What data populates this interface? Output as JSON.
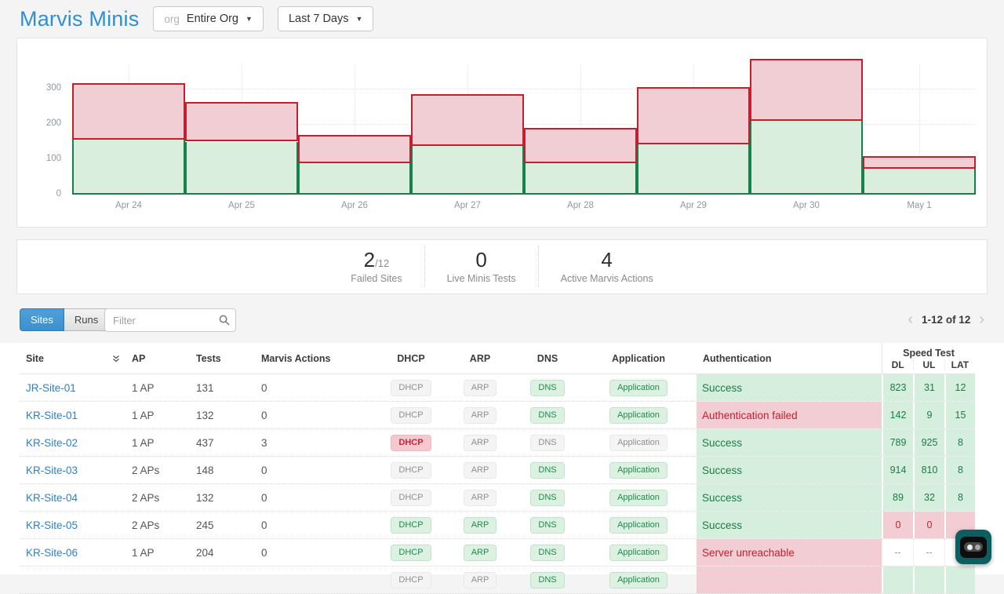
{
  "header": {
    "title": "Marvis Minis",
    "org_dropdown": {
      "prefix": "org",
      "value": "Entire Org"
    },
    "time_dropdown": {
      "value": "Last 7 Days"
    }
  },
  "chart_data": {
    "type": "area",
    "subtype": "stacked-step",
    "categories": [
      "Apr 24",
      "Apr 25",
      "Apr 26",
      "Apr 27",
      "Apr 28",
      "Apr 29",
      "Apr 30",
      "May 1"
    ],
    "series": [
      {
        "name": "success",
        "fill": "#d9eedd",
        "border": "#17804a",
        "values": [
          155,
          150,
          88,
          138,
          90,
          143,
          210,
          73
        ]
      },
      {
        "name": "failure",
        "fill": "#f1ced3",
        "border": "#c2202e",
        "values": [
          160,
          113,
          82,
          147,
          100,
          162,
          175,
          37
        ]
      }
    ],
    "yticks": [
      0,
      100,
      200,
      300
    ],
    "ylim": [
      0,
      400
    ],
    "grid": true,
    "legend_position": "none",
    "title": "",
    "xlabel": "",
    "ylabel": ""
  },
  "stats": [
    {
      "value": "2",
      "suffix": "/12",
      "label": "Failed Sites"
    },
    {
      "value": "0",
      "suffix": "",
      "label": "Live Minis Tests"
    },
    {
      "value": "4",
      "suffix": "",
      "label": "Active Marvis Actions"
    }
  ],
  "toolbar": {
    "tabs": [
      {
        "label": "Sites",
        "active": true
      },
      {
        "label": "Runs",
        "active": false
      }
    ],
    "filter_placeholder": "Filter",
    "pagination": {
      "range": "1-12 of 12",
      "prev": "‹",
      "next": "›"
    }
  },
  "table": {
    "columns": [
      "Site",
      "AP",
      "Tests",
      "Marvis Actions",
      "DHCP",
      "ARP",
      "DNS",
      "Application",
      "Authentication"
    ],
    "speed_group": {
      "label": "Speed Test",
      "sub": [
        "DL",
        "UL",
        "LAT"
      ]
    },
    "badge_labels": {
      "dhcp": "DHCP",
      "arp": "ARP",
      "dns": "DNS",
      "application": "Application"
    },
    "rows": [
      {
        "site": "JR-Site-01",
        "ap": "1 AP",
        "tests": "131",
        "marvis_actions": "0",
        "dhcp": "gray",
        "arp": "gray",
        "dns": "green",
        "application": "green",
        "auth": {
          "text": "Success",
          "state": "green"
        },
        "speed": [
          {
            "text": "823",
            "state": "green"
          },
          {
            "text": "31",
            "state": "green"
          },
          {
            "text": "12",
            "state": "green"
          }
        ]
      },
      {
        "site": "KR-Site-01",
        "ap": "1 AP",
        "tests": "132",
        "marvis_actions": "0",
        "dhcp": "gray",
        "arp": "gray",
        "dns": "green",
        "application": "green",
        "auth": {
          "text": "Authentication failed",
          "state": "red"
        },
        "speed": [
          {
            "text": "142",
            "state": "green"
          },
          {
            "text": "9",
            "state": "green"
          },
          {
            "text": "15",
            "state": "green"
          }
        ]
      },
      {
        "site": "KR-Site-02",
        "ap": "1 AP",
        "tests": "437",
        "marvis_actions": "3",
        "dhcp": "red",
        "arp": "gray",
        "dns": "gray",
        "application": "gray",
        "auth": {
          "text": "Success",
          "state": "green"
        },
        "speed": [
          {
            "text": "789",
            "state": "green"
          },
          {
            "text": "925",
            "state": "green"
          },
          {
            "text": "8",
            "state": "green"
          }
        ]
      },
      {
        "site": "KR-Site-03",
        "ap": "2 APs",
        "tests": "148",
        "marvis_actions": "0",
        "dhcp": "gray",
        "arp": "gray",
        "dns": "green",
        "application": "green",
        "auth": {
          "text": "Success",
          "state": "green"
        },
        "speed": [
          {
            "text": "914",
            "state": "green"
          },
          {
            "text": "810",
            "state": "green"
          },
          {
            "text": "8",
            "state": "green"
          }
        ]
      },
      {
        "site": "KR-Site-04",
        "ap": "2 APs",
        "tests": "132",
        "marvis_actions": "0",
        "dhcp": "gray",
        "arp": "gray",
        "dns": "green",
        "application": "green",
        "auth": {
          "text": "Success",
          "state": "green"
        },
        "speed": [
          {
            "text": "89",
            "state": "green"
          },
          {
            "text": "32",
            "state": "green"
          },
          {
            "text": "8",
            "state": "green"
          }
        ]
      },
      {
        "site": "KR-Site-05",
        "ap": "2 APs",
        "tests": "245",
        "marvis_actions": "0",
        "dhcp": "green",
        "arp": "green",
        "dns": "green",
        "application": "green",
        "auth": {
          "text": "Success",
          "state": "green"
        },
        "speed": [
          {
            "text": "0",
            "state": "red"
          },
          {
            "text": "0",
            "state": "red"
          },
          {
            "text": "",
            "state": "red"
          }
        ]
      },
      {
        "site": "KR-Site-06",
        "ap": "1 AP",
        "tests": "204",
        "marvis_actions": "0",
        "dhcp": "green",
        "arp": "green",
        "dns": "green",
        "application": "green",
        "auth": {
          "text": "Server unreachable",
          "state": "red"
        },
        "speed": [
          {
            "text": "--",
            "state": "plain"
          },
          {
            "text": "--",
            "state": "plain"
          },
          {
            "text": "--",
            "state": "plain"
          }
        ]
      },
      {
        "site": "",
        "ap": "",
        "tests": "",
        "marvis_actions": "",
        "dhcp": "gray",
        "arp": "gray",
        "dns": "green",
        "application": "green",
        "auth": {
          "text": "",
          "state": "red"
        },
        "speed": [
          {
            "text": "",
            "state": "green"
          },
          {
            "text": "",
            "state": "green"
          },
          {
            "text": "",
            "state": "green"
          }
        ]
      }
    ]
  }
}
